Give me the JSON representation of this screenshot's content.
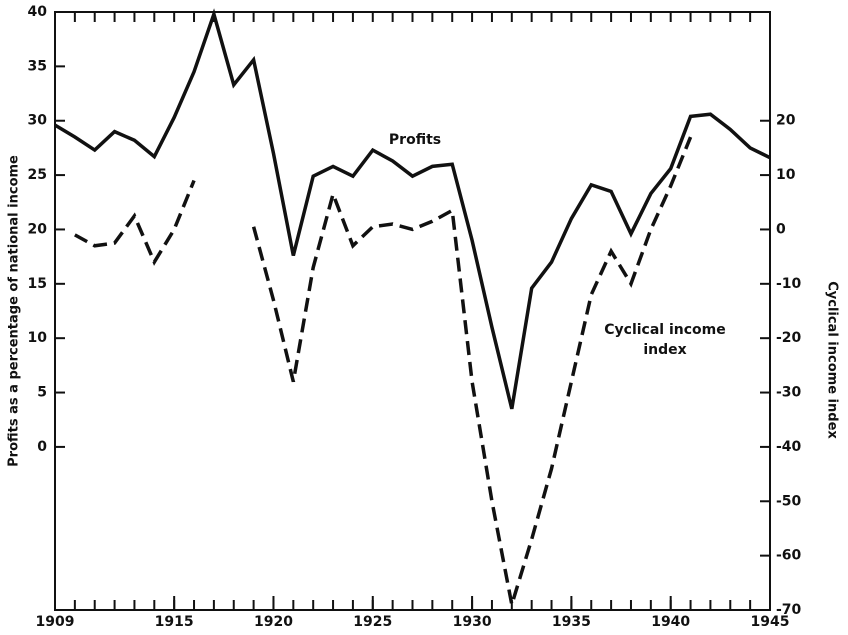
{
  "chart_data": {
    "type": "line",
    "y_label": "Profits as a percentage of national income",
    "y2_label": "Cyclical income index",
    "annotations": [
      "Profits",
      "Cyclical income",
      "index"
    ],
    "x": [
      1909,
      1910,
      1911,
      1912,
      1913,
      1914,
      1915,
      1916,
      1917,
      1918,
      1919,
      1920,
      1921,
      1922,
      1923,
      1924,
      1925,
      1926,
      1927,
      1928,
      1929,
      1930,
      1931,
      1932,
      1933,
      1934,
      1935,
      1936,
      1937,
      1938,
      1939,
      1940,
      1941,
      1942,
      1943,
      1944,
      1945
    ],
    "series": [
      {
        "name": "Profits",
        "color": "#111111",
        "style": "solid",
        "values": [
          29.6,
          28.5,
          27.3,
          29.0,
          28.2,
          26.7,
          30.3,
          34.5,
          39.8,
          33.3,
          35.6,
          27.0,
          17.6,
          24.9,
          25.8,
          24.9,
          27.3,
          26.3,
          24.9,
          25.8,
          26.0,
          19.0,
          11.0,
          3.5,
          14.6,
          17.0,
          21.0,
          24.1,
          23.5,
          19.6,
          23.3,
          25.6,
          30.4,
          30.6,
          29.2,
          27.5,
          26.6
        ]
      },
      {
        "name": "Cyclical income index",
        "color": "#111111",
        "style": "dashed",
        "axis": "y2",
        "values": [
          null,
          -1,
          -3,
          -2.5,
          2.5,
          -6,
          0,
          9,
          null,
          null,
          0.5,
          -13,
          -28,
          -7,
          6.5,
          -3,
          0.5,
          1,
          0,
          1.5,
          3.5,
          -28,
          -50,
          -69,
          -57,
          -44,
          -28,
          -12,
          -4,
          -10,
          0,
          8,
          17,
          null,
          null,
          null,
          null
        ]
      }
    ],
    "xlim": [
      1909,
      1945
    ],
    "xticks": [
      1909,
      1915,
      1920,
      1925,
      1930,
      1935,
      1940,
      1945
    ],
    "ylim": [
      -15,
      40
    ],
    "yticks": [
      0,
      5,
      10,
      15,
      20,
      25,
      30,
      35,
      40
    ],
    "y2lim": [
      -70,
      40
    ],
    "y2ticks": [
      -70,
      -60,
      -50,
      -40,
      -30,
      -20,
      -10,
      0,
      10,
      20
    ]
  }
}
